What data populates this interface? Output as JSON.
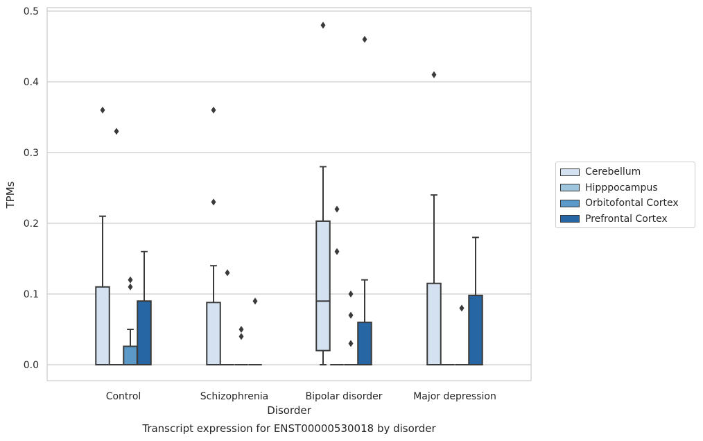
{
  "chart_data": {
    "type": "box",
    "xlabel": "Disorder",
    "ylabel": "TPMs",
    "caption": "Transcript expression for ENST00000530018 by disorder",
    "ylim": [
      -0.024,
      0.505
    ],
    "yticks": [
      0.0,
      0.1,
      0.2,
      0.3,
      0.4,
      0.5
    ],
    "ytick_labels": [
      "0.0",
      "0.1",
      "0.2",
      "0.3",
      "0.4",
      "0.5"
    ],
    "grid": true,
    "legend_position": "right",
    "categories": [
      "Control",
      "Schizophrenia",
      "Bipolar disorder",
      "Major depression"
    ],
    "series": [
      {
        "name": "Cerebellum",
        "color": "#d3e1f0",
        "boxes": [
          {
            "q1": 0.0,
            "median": 0.0,
            "q3": 0.11,
            "whisker_low": 0.0,
            "whisker_high": 0.21,
            "outliers": [
              0.36
            ]
          },
          {
            "q1": 0.0,
            "median": 0.0,
            "q3": 0.088,
            "whisker_low": 0.0,
            "whisker_high": 0.14,
            "outliers": [
              0.23,
              0.36
            ]
          },
          {
            "q1": 0.02,
            "median": 0.09,
            "q3": 0.203,
            "whisker_low": 0.0,
            "whisker_high": 0.28,
            "outliers": [
              0.48
            ]
          },
          {
            "q1": 0.0,
            "median": 0.0,
            "q3": 0.115,
            "whisker_low": 0.0,
            "whisker_high": 0.24,
            "outliers": [
              0.41
            ]
          }
        ]
      },
      {
        "name": "Hipppocampus",
        "color": "#9ec4de",
        "boxes": [
          {
            "q1": 0.0,
            "median": 0.0,
            "q3": 0.0,
            "whisker_low": 0.0,
            "whisker_high": 0.0,
            "outliers": [
              0.33
            ]
          },
          {
            "q1": 0.0,
            "median": 0.0,
            "q3": 0.0,
            "whisker_low": 0.0,
            "whisker_high": 0.0,
            "outliers": [
              0.13
            ]
          },
          {
            "q1": 0.0,
            "median": 0.0,
            "q3": 0.0,
            "whisker_low": 0.0,
            "whisker_high": 0.0,
            "outliers": [
              0.16,
              0.22
            ]
          },
          {
            "q1": 0.0,
            "median": 0.0,
            "q3": 0.0,
            "whisker_low": 0.0,
            "whisker_high": 0.0,
            "outliers": []
          }
        ]
      },
      {
        "name": "Orbitofontal Cortex",
        "color": "#5b9ac8",
        "boxes": [
          {
            "q1": 0.0,
            "median": 0.0,
            "q3": 0.026,
            "whisker_low": 0.0,
            "whisker_high": 0.05,
            "outliers": [
              0.11,
              0.12
            ]
          },
          {
            "q1": 0.0,
            "median": 0.0,
            "q3": 0.0,
            "whisker_low": 0.0,
            "whisker_high": 0.0,
            "outliers": [
              0.04,
              0.05
            ]
          },
          {
            "q1": 0.0,
            "median": 0.0,
            "q3": 0.0,
            "whisker_low": 0.0,
            "whisker_high": 0.0,
            "outliers": [
              0.03,
              0.07,
              0.1
            ]
          },
          {
            "q1": 0.0,
            "median": 0.0,
            "q3": 0.0,
            "whisker_low": 0.0,
            "whisker_high": 0.0,
            "outliers": [
              0.08
            ]
          }
        ]
      },
      {
        "name": "Prefrontal Cortex",
        "color": "#2766a5",
        "boxes": [
          {
            "q1": 0.0,
            "median": 0.0,
            "q3": 0.09,
            "whisker_low": 0.0,
            "whisker_high": 0.16,
            "outliers": []
          },
          {
            "q1": 0.0,
            "median": 0.0,
            "q3": 0.0,
            "whisker_low": 0.0,
            "whisker_high": 0.0,
            "outliers": [
              0.09
            ]
          },
          {
            "q1": 0.0,
            "median": 0.0,
            "q3": 0.06,
            "whisker_low": 0.0,
            "whisker_high": 0.12,
            "outliers": [
              0.46
            ]
          },
          {
            "q1": 0.0,
            "median": 0.0,
            "q3": 0.098,
            "whisker_low": 0.0,
            "whisker_high": 0.18,
            "outliers": []
          }
        ]
      }
    ]
  }
}
